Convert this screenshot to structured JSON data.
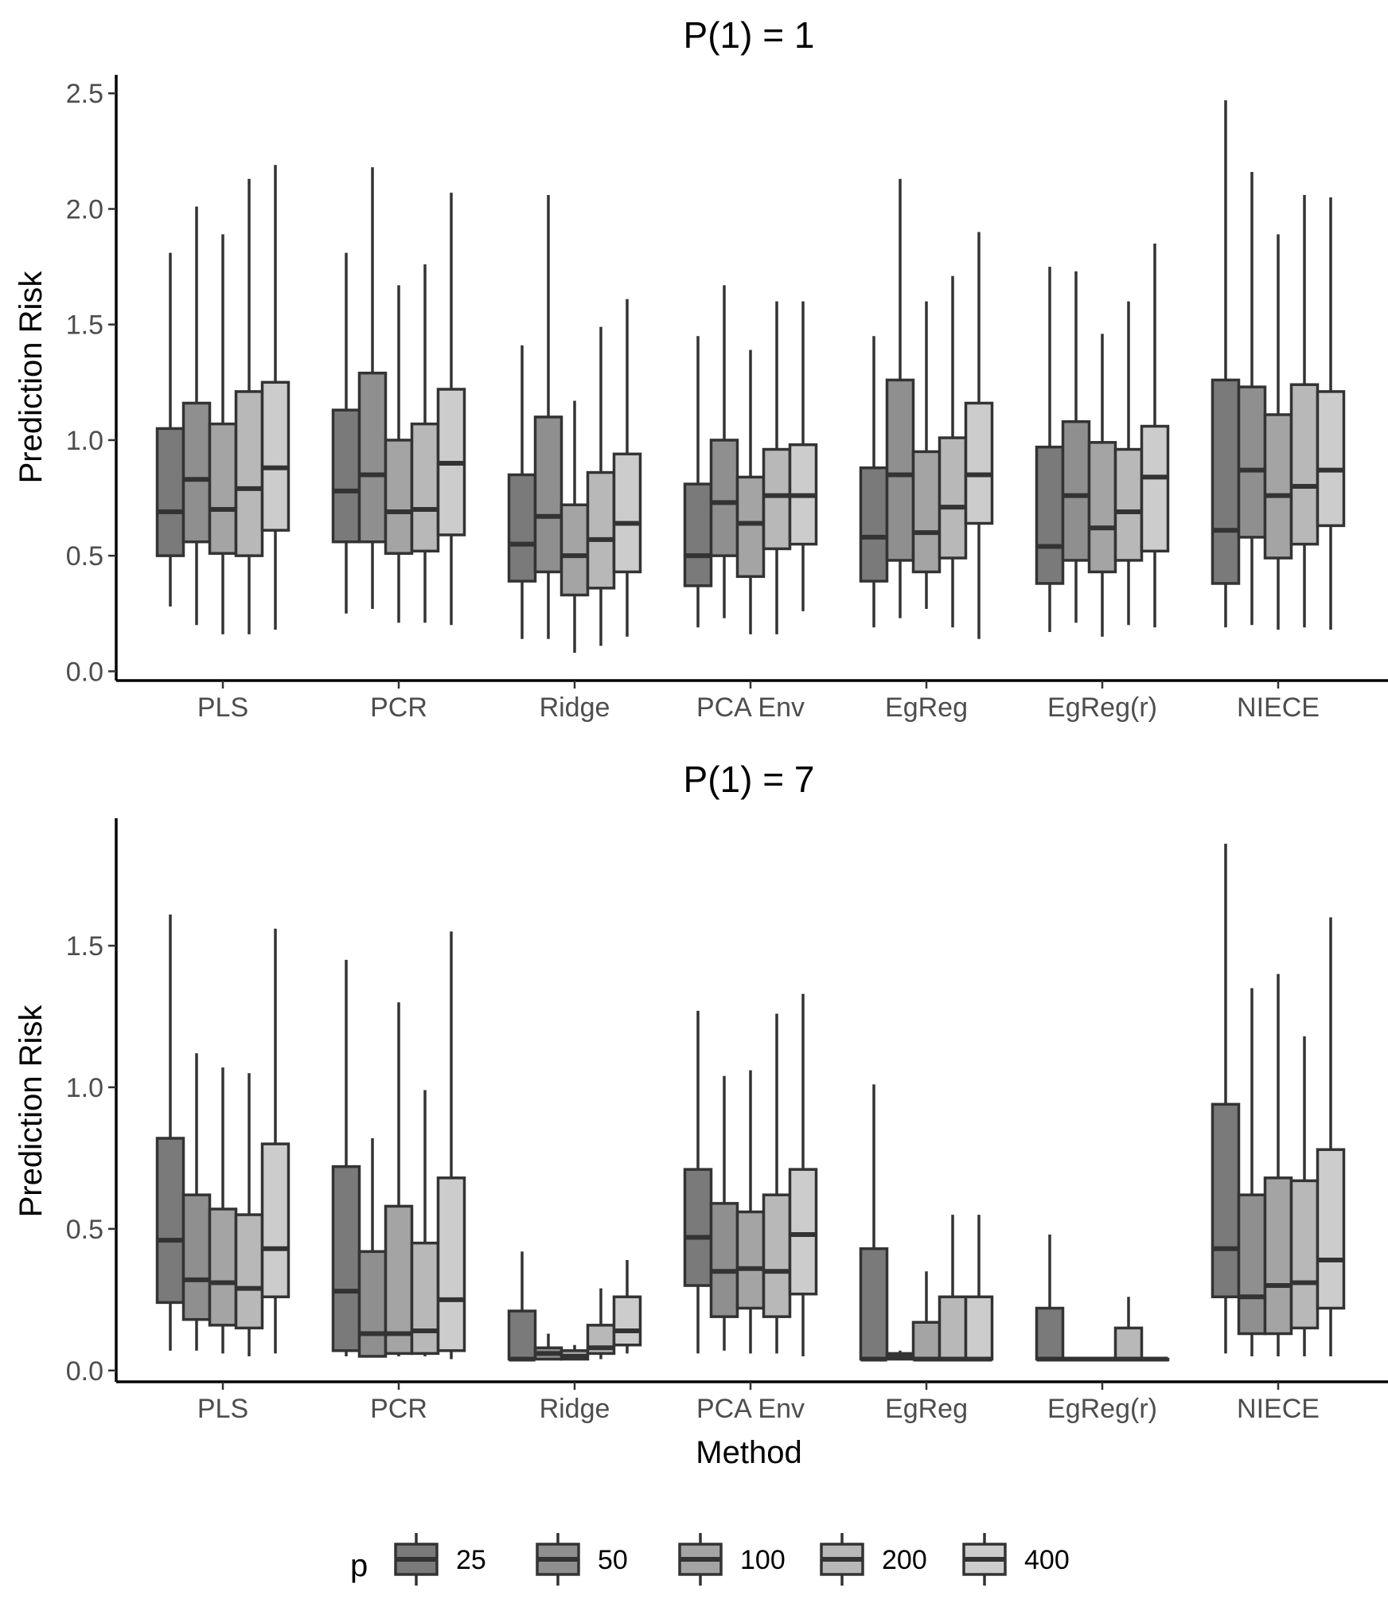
{
  "chart_data": [
    {
      "type": "boxplot",
      "title": "P(1) = 1",
      "xlabel": "",
      "ylabel": "Prediction Risk",
      "ylim": [
        -0.04,
        2.58
      ],
      "yticks": [
        0.0,
        0.5,
        1.0,
        1.5,
        2.0,
        2.5
      ],
      "ytick_labels": [
        "0.0",
        "0.5",
        "1.0",
        "1.5",
        "2.0",
        "2.5"
      ],
      "categories": [
        "PLS",
        "PCR",
        "Ridge",
        "PCA Env",
        "EgReg",
        "EgReg(r)",
        "NIECE"
      ],
      "series": [
        {
          "name": "25",
          "color": "#7a7a7a",
          "boxes": [
            {
              "min": 0.28,
              "q1": 0.5,
              "median": 0.69,
              "q3": 1.05,
              "max": 1.81
            },
            {
              "min": 0.25,
              "q1": 0.56,
              "median": 0.78,
              "q3": 1.13,
              "max": 1.81
            },
            {
              "min": 0.14,
              "q1": 0.39,
              "median": 0.55,
              "q3": 0.85,
              "max": 1.41
            },
            {
              "min": 0.19,
              "q1": 0.37,
              "median": 0.5,
              "q3": 0.81,
              "max": 1.45
            },
            {
              "min": 0.19,
              "q1": 0.39,
              "median": 0.58,
              "q3": 0.88,
              "max": 1.45
            },
            {
              "min": 0.17,
              "q1": 0.38,
              "median": 0.54,
              "q3": 0.97,
              "max": 1.75
            },
            {
              "min": 0.19,
              "q1": 0.38,
              "median": 0.61,
              "q3": 1.26,
              "max": 2.47
            }
          ]
        },
        {
          "name": "50",
          "color": "#8f8f8f",
          "boxes": [
            {
              "min": 0.2,
              "q1": 0.56,
              "median": 0.83,
              "q3": 1.16,
              "max": 2.01
            },
            {
              "min": 0.27,
              "q1": 0.56,
              "median": 0.85,
              "q3": 1.29,
              "max": 2.18
            },
            {
              "min": 0.14,
              "q1": 0.43,
              "median": 0.67,
              "q3": 1.1,
              "max": 2.06
            },
            {
              "min": 0.23,
              "q1": 0.5,
              "median": 0.73,
              "q3": 1.0,
              "max": 1.67
            },
            {
              "min": 0.23,
              "q1": 0.48,
              "median": 0.85,
              "q3": 1.26,
              "max": 2.13
            },
            {
              "min": 0.21,
              "q1": 0.48,
              "median": 0.76,
              "q3": 1.08,
              "max": 1.73
            },
            {
              "min": 0.2,
              "q1": 0.58,
              "median": 0.87,
              "q3": 1.23,
              "max": 2.16
            }
          ]
        },
        {
          "name": "100",
          "color": "#a4a4a4",
          "boxes": [
            {
              "min": 0.16,
              "q1": 0.51,
              "median": 0.7,
              "q3": 1.07,
              "max": 1.89
            },
            {
              "min": 0.21,
              "q1": 0.51,
              "median": 0.69,
              "q3": 1.0,
              "max": 1.67
            },
            {
              "min": 0.08,
              "q1": 0.33,
              "median": 0.5,
              "q3": 0.72,
              "max": 1.17
            },
            {
              "min": 0.16,
              "q1": 0.41,
              "median": 0.64,
              "q3": 0.84,
              "max": 1.39
            },
            {
              "min": 0.27,
              "q1": 0.43,
              "median": 0.6,
              "q3": 0.95,
              "max": 1.6
            },
            {
              "min": 0.15,
              "q1": 0.43,
              "median": 0.62,
              "q3": 0.99,
              "max": 1.46
            },
            {
              "min": 0.18,
              "q1": 0.49,
              "median": 0.76,
              "q3": 1.11,
              "max": 1.89
            }
          ]
        },
        {
          "name": "200",
          "color": "#b8b8b8",
          "boxes": [
            {
              "min": 0.16,
              "q1": 0.5,
              "median": 0.79,
              "q3": 1.21,
              "max": 2.13
            },
            {
              "min": 0.21,
              "q1": 0.52,
              "median": 0.7,
              "q3": 1.07,
              "max": 1.76
            },
            {
              "min": 0.11,
              "q1": 0.36,
              "median": 0.57,
              "q3": 0.86,
              "max": 1.49
            },
            {
              "min": 0.16,
              "q1": 0.53,
              "median": 0.76,
              "q3": 0.96,
              "max": 1.6
            },
            {
              "min": 0.19,
              "q1": 0.49,
              "median": 0.71,
              "q3": 1.01,
              "max": 1.71
            },
            {
              "min": 0.2,
              "q1": 0.48,
              "median": 0.69,
              "q3": 0.96,
              "max": 1.6
            },
            {
              "min": 0.19,
              "q1": 0.55,
              "median": 0.8,
              "q3": 1.24,
              "max": 2.06
            }
          ]
        },
        {
          "name": "400",
          "color": "#cccccc",
          "boxes": [
            {
              "min": 0.18,
              "q1": 0.61,
              "median": 0.88,
              "q3": 1.25,
              "max": 2.19
            },
            {
              "min": 0.2,
              "q1": 0.59,
              "median": 0.9,
              "q3": 1.22,
              "max": 2.07
            },
            {
              "min": 0.15,
              "q1": 0.43,
              "median": 0.64,
              "q3": 0.94,
              "max": 1.61
            },
            {
              "min": 0.26,
              "q1": 0.55,
              "median": 0.76,
              "q3": 0.98,
              "max": 1.6
            },
            {
              "min": 0.14,
              "q1": 0.64,
              "median": 0.85,
              "q3": 1.16,
              "max": 1.9
            },
            {
              "min": 0.19,
              "q1": 0.52,
              "median": 0.84,
              "q3": 1.06,
              "max": 1.85
            },
            {
              "min": 0.18,
              "q1": 0.63,
              "median": 0.87,
              "q3": 1.21,
              "max": 2.05
            }
          ]
        }
      ]
    },
    {
      "type": "boxplot",
      "title": "P(1) = 7",
      "xlabel": "Method",
      "ylabel": "Prediction Risk",
      "ylim": [
        -0.04,
        1.95
      ],
      "yticks": [
        0.0,
        0.5,
        1.0,
        1.5
      ],
      "ytick_labels": [
        "0.0",
        "0.5",
        "1.0",
        "1.5"
      ],
      "categories": [
        "PLS",
        "PCR",
        "Ridge",
        "PCA Env",
        "EgReg",
        "EgReg(r)",
        "NIECE"
      ],
      "series": [
        {
          "name": "25",
          "color": "#7a7a7a",
          "boxes": [
            {
              "min": 0.07,
              "q1": 0.24,
              "median": 0.46,
              "q3": 0.82,
              "max": 1.61
            },
            {
              "min": 0.05,
              "q1": 0.07,
              "median": 0.28,
              "q3": 0.72,
              "max": 1.45
            },
            {
              "min": 0.04,
              "q1": 0.04,
              "median": 0.04,
              "q3": 0.21,
              "max": 0.42
            },
            {
              "min": 0.06,
              "q1": 0.3,
              "median": 0.47,
              "q3": 0.71,
              "max": 1.27
            },
            {
              "min": 0.04,
              "q1": 0.04,
              "median": 0.04,
              "q3": 0.43,
              "max": 1.01
            },
            {
              "min": 0.04,
              "q1": 0.04,
              "median": 0.04,
              "q3": 0.22,
              "max": 0.48
            },
            {
              "min": 0.06,
              "q1": 0.26,
              "median": 0.43,
              "q3": 0.94,
              "max": 1.86
            }
          ]
        },
        {
          "name": "50",
          "color": "#8f8f8f",
          "boxes": [
            {
              "min": 0.07,
              "q1": 0.18,
              "median": 0.32,
              "q3": 0.62,
              "max": 1.12
            },
            {
              "min": 0.05,
              "q1": 0.05,
              "median": 0.13,
              "q3": 0.42,
              "max": 0.82
            },
            {
              "min": 0.04,
              "q1": 0.04,
              "median": 0.06,
              "q3": 0.08,
              "max": 0.13
            },
            {
              "min": 0.07,
              "q1": 0.19,
              "median": 0.35,
              "q3": 0.59,
              "max": 1.04
            },
            {
              "min": 0.04,
              "q1": 0.04,
              "median": 0.05,
              "q3": 0.06,
              "max": 0.07
            },
            {
              "min": 0.04,
              "q1": 0.04,
              "median": 0.04,
              "q3": 0.04,
              "max": 0.04
            },
            {
              "min": 0.05,
              "q1": 0.13,
              "median": 0.26,
              "q3": 0.62,
              "max": 1.35
            }
          ]
        },
        {
          "name": "100",
          "color": "#a4a4a4",
          "boxes": [
            {
              "min": 0.06,
              "q1": 0.16,
              "median": 0.31,
              "q3": 0.57,
              "max": 1.07
            },
            {
              "min": 0.05,
              "q1": 0.06,
              "median": 0.13,
              "q3": 0.58,
              "max": 1.3
            },
            {
              "min": 0.04,
              "q1": 0.04,
              "median": 0.05,
              "q3": 0.07,
              "max": 0.09
            },
            {
              "min": 0.06,
              "q1": 0.22,
              "median": 0.36,
              "q3": 0.56,
              "max": 1.06
            },
            {
              "min": 0.04,
              "q1": 0.04,
              "median": 0.04,
              "q3": 0.17,
              "max": 0.35
            },
            {
              "min": 0.04,
              "q1": 0.04,
              "median": 0.04,
              "q3": 0.04,
              "max": 0.04
            },
            {
              "min": 0.05,
              "q1": 0.13,
              "median": 0.3,
              "q3": 0.68,
              "max": 1.4
            }
          ]
        },
        {
          "name": "200",
          "color": "#b8b8b8",
          "boxes": [
            {
              "min": 0.05,
              "q1": 0.15,
              "median": 0.29,
              "q3": 0.55,
              "max": 1.05
            },
            {
              "min": 0.05,
              "q1": 0.06,
              "median": 0.14,
              "q3": 0.45,
              "max": 0.99
            },
            {
              "min": 0.04,
              "q1": 0.06,
              "median": 0.08,
              "q3": 0.16,
              "max": 0.29
            },
            {
              "min": 0.06,
              "q1": 0.19,
              "median": 0.35,
              "q3": 0.62,
              "max": 1.26
            },
            {
              "min": 0.04,
              "q1": 0.04,
              "median": 0.04,
              "q3": 0.26,
              "max": 0.55
            },
            {
              "min": 0.04,
              "q1": 0.04,
              "median": 0.04,
              "q3": 0.15,
              "max": 0.26
            },
            {
              "min": 0.05,
              "q1": 0.15,
              "median": 0.31,
              "q3": 0.67,
              "max": 1.18
            }
          ]
        },
        {
          "name": "400",
          "color": "#cccccc",
          "boxes": [
            {
              "min": 0.06,
              "q1": 0.26,
              "median": 0.43,
              "q3": 0.8,
              "max": 1.56
            },
            {
              "min": 0.04,
              "q1": 0.07,
              "median": 0.25,
              "q3": 0.68,
              "max": 1.55
            },
            {
              "min": 0.06,
              "q1": 0.09,
              "median": 0.14,
              "q3": 0.26,
              "max": 0.39
            },
            {
              "min": 0.05,
              "q1": 0.27,
              "median": 0.48,
              "q3": 0.71,
              "max": 1.33
            },
            {
              "min": 0.04,
              "q1": 0.04,
              "median": 0.04,
              "q3": 0.26,
              "max": 0.55
            },
            {
              "min": 0.04,
              "q1": 0.04,
              "median": 0.04,
              "q3": 0.04,
              "max": 0.04
            },
            {
              "min": 0.05,
              "q1": 0.22,
              "median": 0.39,
              "q3": 0.78,
              "max": 1.6
            }
          ]
        }
      ]
    }
  ],
  "legend": {
    "title": "p",
    "position": "bottom",
    "items": [
      {
        "label": "25",
        "color": "#7a7a7a"
      },
      {
        "label": "50",
        "color": "#8f8f8f"
      },
      {
        "label": "100",
        "color": "#a4a4a4"
      },
      {
        "label": "200",
        "color": "#b8b8b8"
      },
      {
        "label": "400",
        "color": "#cccccc"
      }
    ]
  }
}
